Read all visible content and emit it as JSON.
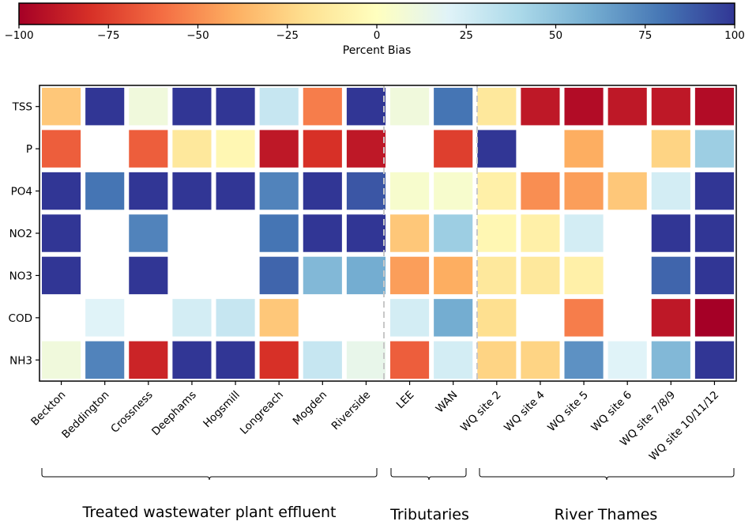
{
  "chart_data": {
    "type": "heatmap",
    "colorbar": {
      "label": "Percent Bias",
      "min": -100,
      "max": 100,
      "ticks": [
        "−100",
        "−75",
        "−50",
        "−25",
        "0",
        "25",
        "50",
        "75",
        "100"
      ],
      "tick_values": [
        -100,
        -75,
        -50,
        -25,
        0,
        25,
        50,
        75,
        100
      ]
    },
    "rows": [
      "TSS",
      "P",
      "PO4",
      "NO2",
      "NO3",
      "COD",
      "NH3"
    ],
    "columns": [
      "Beckton",
      "Beddington",
      "Crossness",
      "Deephams",
      "Hogsmill",
      "Longreach",
      "Mogden",
      "Riverside",
      "LEE",
      "WAN",
      "WQ site 2",
      "WQ site 4",
      "WQ site 5",
      "WQ site 6",
      "WQ site 7/8/9",
      "WQ site 10/11/12"
    ],
    "values": [
      [
        -30,
        100,
        10,
        100,
        100,
        30,
        -55,
        100,
        10,
        80,
        -15,
        -90,
        -95,
        -90,
        -90,
        -95
      ],
      [
        -65,
        null,
        -65,
        -15,
        -5,
        -90,
        -80,
        -90,
        null,
        -75,
        100,
        null,
        -40,
        null,
        -25,
        45
      ],
      [
        100,
        80,
        100,
        100,
        100,
        75,
        100,
        90,
        5,
        5,
        -10,
        -50,
        -45,
        -30,
        25,
        100
      ],
      [
        100,
        null,
        75,
        null,
        null,
        80,
        100,
        100,
        -30,
        45,
        -5,
        -10,
        25,
        null,
        100,
        100
      ],
      [
        100,
        null,
        100,
        null,
        null,
        85,
        55,
        60,
        -45,
        -40,
        -15,
        -15,
        -10,
        null,
        85,
        100
      ],
      [
        null,
        20,
        null,
        25,
        30,
        -30,
        null,
        null,
        25,
        60,
        -20,
        null,
        -55,
        null,
        -90,
        -100
      ],
      [
        10,
        75,
        -85,
        100,
        100,
        -80,
        30,
        15,
        -65,
        25,
        -25,
        -25,
        70,
        20,
        55,
        100
      ]
    ],
    "groups": [
      {
        "label": "Treated wastewater plant effluent",
        "columns": [
          0,
          7
        ]
      },
      {
        "label": "Tributaries",
        "columns": [
          8,
          9
        ]
      },
      {
        "label": "River Thames",
        "columns": [
          10,
          15
        ]
      }
    ]
  },
  "colors": {
    "scale": [
      "#a50026",
      "#d73027",
      "#f46d43",
      "#fdae61",
      "#fee090",
      "#ffffbf",
      "#e0f3f8",
      "#abd9e9",
      "#74add1",
      "#4575b4",
      "#313695"
    ],
    "separator": "#c8c8c8",
    "axis": "#000000"
  }
}
